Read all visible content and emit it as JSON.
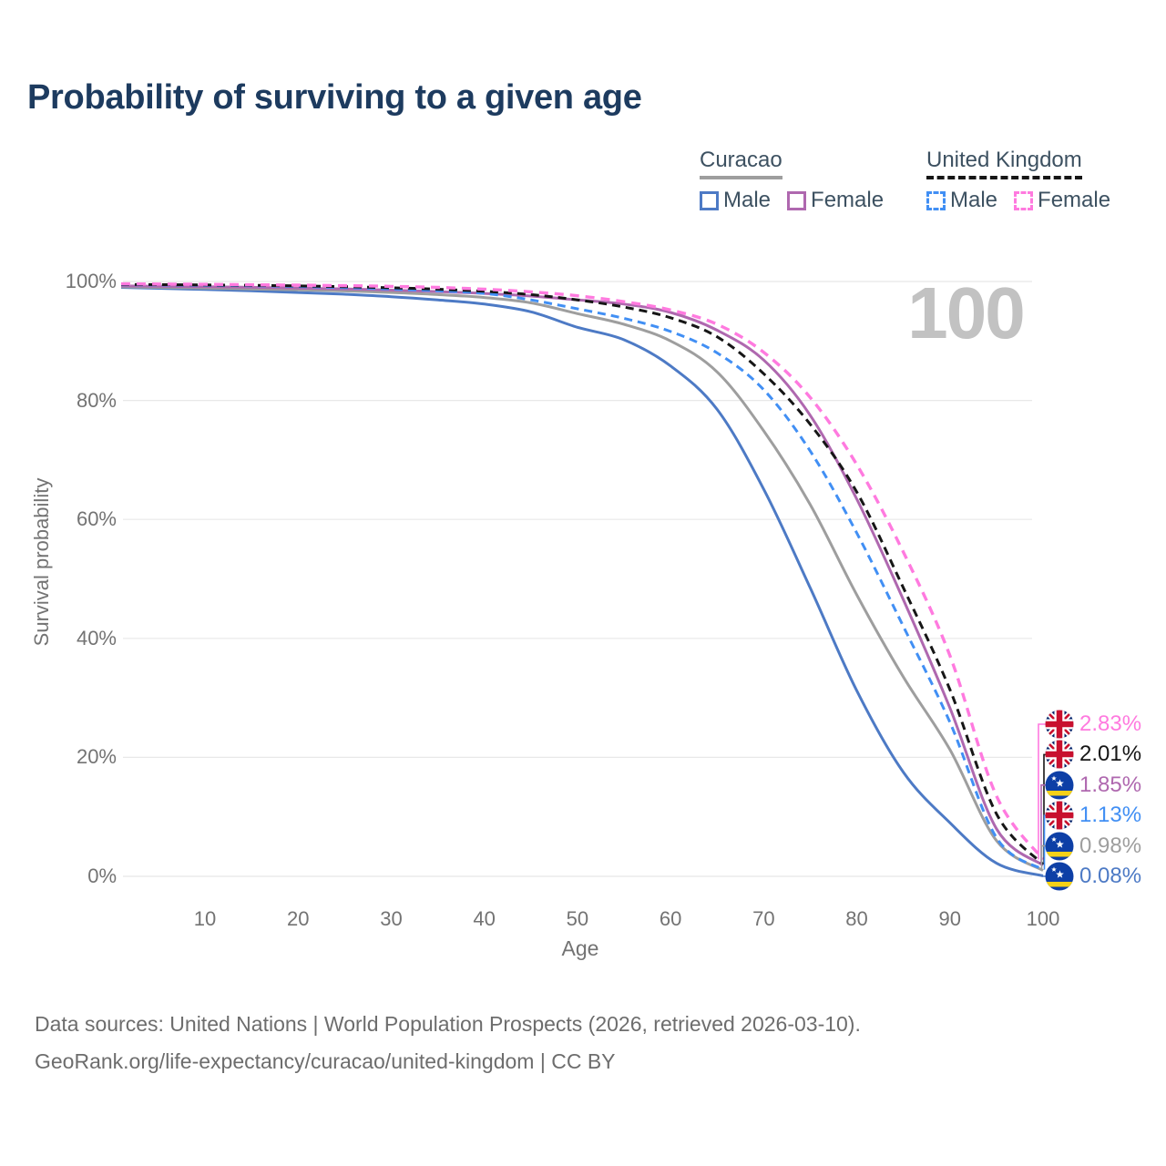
{
  "title": "Probability of surviving to a given age",
  "watermark": "100",
  "legend": {
    "groups": [
      {
        "label": "Curacao",
        "line_style": "solid",
        "line_color": "#9e9e9e",
        "items": [
          {
            "label": "Male",
            "color": "#4d7ac5",
            "dashed": false
          },
          {
            "label": "Female",
            "color": "#af68af",
            "dashed": false
          }
        ]
      },
      {
        "label": "United Kingdom",
        "line_style": "dashed",
        "line_color": "#161616",
        "items": [
          {
            "label": "Male",
            "color": "#418ff4",
            "dashed": true
          },
          {
            "label": "Female",
            "color": "#ff7adf",
            "dashed": true
          }
        ]
      }
    ]
  },
  "chart_data": {
    "type": "line",
    "title": "Probability of surviving to a given age",
    "xlabel": "Age",
    "ylabel": "Survival probability",
    "xlim": [
      0,
      100
    ],
    "ylim": [
      0,
      100
    ],
    "grid": true,
    "legend_position": "top-right",
    "x_ticks": [
      10,
      20,
      30,
      40,
      50,
      60,
      70,
      80,
      90,
      100
    ],
    "y_ticks": [
      {
        "value": 0,
        "label": "0%"
      },
      {
        "value": 20,
        "label": "20%"
      },
      {
        "value": 40,
        "label": "40%"
      },
      {
        "value": 60,
        "label": "60%"
      },
      {
        "value": 80,
        "label": "80%"
      },
      {
        "value": 100,
        "label": "100%"
      }
    ],
    "ages": [
      1,
      5,
      10,
      15,
      20,
      25,
      30,
      35,
      40,
      45,
      50,
      55,
      60,
      65,
      70,
      75,
      80,
      85,
      90,
      95,
      100
    ],
    "series": [
      {
        "id": "curacao-male",
        "country": "Curacao",
        "sex": "Male",
        "color": "#4d7ac5",
        "dashed": false,
        "flag": "curacao-flag-icon",
        "end_label": "0.08%",
        "values": [
          99.0,
          98.85,
          98.65,
          98.42,
          98.15,
          97.85,
          97.45,
          96.9,
          96.2,
          94.9,
          92.3,
          90.2,
          85.8,
          78.5,
          65.1,
          48.5,
          31.2,
          17.5,
          9.0,
          2.2,
          0.08
        ]
      },
      {
        "id": "curacao-both",
        "country": "Curacao",
        "sex": "Both",
        "color": "#9e9e9e",
        "dashed": false,
        "flag": "curacao-flag-icon",
        "end_label": "0.98%",
        "values": [
          99.1,
          99.0,
          98.88,
          98.74,
          98.6,
          98.4,
          98.15,
          97.8,
          97.3,
          96.4,
          94.6,
          92.8,
          90.0,
          84.8,
          74.9,
          62.5,
          47.3,
          33.5,
          21.3,
          6.0,
          0.98
        ]
      },
      {
        "id": "curacao-female",
        "country": "Curacao",
        "sex": "Female",
        "color": "#af68af",
        "dashed": false,
        "flag": "curacao-flag-icon",
        "end_label": "1.85%",
        "values": [
          99.25,
          99.2,
          99.12,
          99.02,
          98.9,
          98.75,
          98.55,
          98.3,
          98.0,
          97.55,
          96.9,
          96.2,
          94.8,
          91.8,
          86.8,
          77.5,
          63.4,
          46.5,
          28.3,
          8.0,
          1.85
        ]
      },
      {
        "id": "uk-male",
        "country": "United Kingdom",
        "sex": "Male",
        "color": "#418ff4",
        "dashed": true,
        "flag": "uk-flag-icon",
        "end_label": "1.13%",
        "values": [
          99.45,
          99.42,
          99.36,
          99.28,
          99.15,
          98.97,
          98.72,
          98.42,
          98.0,
          96.9,
          95.4,
          93.8,
          91.6,
          88.0,
          81.8,
          71.5,
          57.7,
          42.0,
          25.9,
          6.5,
          1.13
        ]
      },
      {
        "id": "uk-both",
        "country": "United Kingdom",
        "sex": "Both",
        "color": "#161616",
        "dashed": true,
        "flag": "uk-flag-icon",
        "end_label": "2.01%",
        "values": [
          99.5,
          99.47,
          99.42,
          99.35,
          99.25,
          99.12,
          98.95,
          98.7,
          98.35,
          97.8,
          96.9,
          95.7,
          93.9,
          90.7,
          84.5,
          76.0,
          64.6,
          48.5,
          31.4,
          10.5,
          2.01
        ]
      },
      {
        "id": "uk-female",
        "country": "United Kingdom",
        "sex": "Female",
        "color": "#ff7adf",
        "dashed": true,
        "flag": "uk-flag-icon",
        "end_label": "2.83%",
        "values": [
          99.6,
          99.57,
          99.52,
          99.45,
          99.38,
          99.3,
          99.18,
          99.0,
          98.7,
          98.25,
          97.6,
          96.6,
          95.2,
          92.8,
          88.1,
          80.5,
          69.2,
          54.5,
          37.1,
          13.5,
          2.83
        ]
      }
    ]
  },
  "footer": {
    "line1": "Data sources: United Nations | World Population Prospects (2026, retrieved 2026-03-10).",
    "line2": "GeoRank.org/life-expectancy/curacao/united-kingdom | CC BY"
  }
}
